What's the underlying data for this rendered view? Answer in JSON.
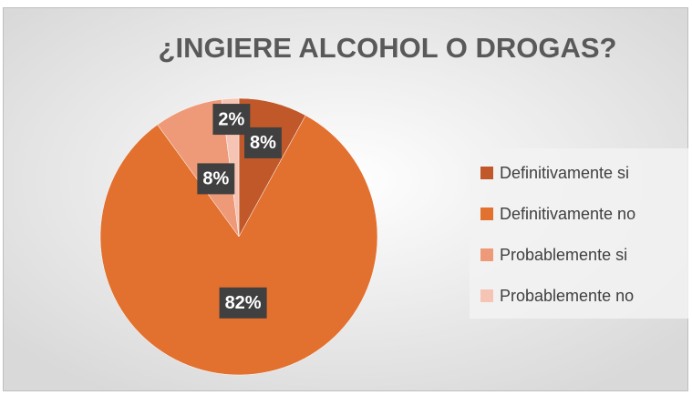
{
  "chart_data": {
    "type": "pie",
    "title": "¿INGIERE ALCOHOL O DROGAS?",
    "categories": [
      "Definitivamente si",
      "Definitivamente no",
      "Probablemente si",
      "Probablemente no"
    ],
    "values": [
      8,
      82,
      8,
      2
    ],
    "value_labels": [
      "8%",
      "82%",
      "8%",
      "2%"
    ],
    "colors": [
      "#c0582a",
      "#e2702f",
      "#ee9a78",
      "#f6c4b4"
    ],
    "legend": "right"
  }
}
